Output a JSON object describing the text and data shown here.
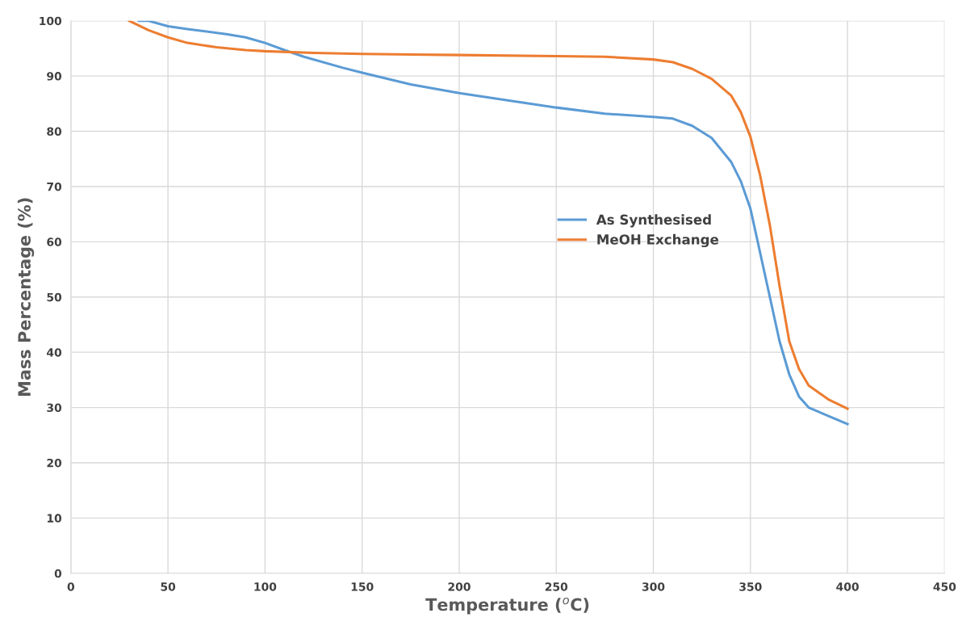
{
  "chart_data": {
    "type": "line",
    "xlabel": "Temperature ($^{o}$C)",
    "ylabel": "Mass Percentage (%)",
    "xlim": [
      0,
      450
    ],
    "xticks": [
      0,
      50,
      100,
      150,
      200,
      250,
      300,
      350,
      400,
      450
    ],
    "ylim": [
      0,
      100
    ],
    "yticks": [
      0,
      10,
      20,
      30,
      40,
      50,
      60,
      70,
      80,
      90,
      100
    ],
    "grid": true,
    "legend": "center",
    "marker": "none",
    "line_style": "solid",
    "series": [
      {
        "name": "As Synthesised",
        "color": "#5b9bd5",
        "x": [
          35,
          40,
          50,
          60,
          80,
          90,
          100,
          110,
          120,
          140,
          150,
          175,
          200,
          225,
          250,
          275,
          300,
          310,
          320,
          330,
          340,
          345,
          350,
          355,
          360,
          365,
          370,
          375,
          380,
          390,
          400
        ],
        "values": [
          100,
          100,
          99,
          98.5,
          97.6,
          97,
          96,
          94.7,
          93.5,
          91.5,
          90.6,
          88.5,
          86.9,
          85.6,
          84.3,
          83.2,
          82.6,
          82.3,
          81,
          78.8,
          74.5,
          71,
          66,
          58,
          50,
          42,
          36,
          32,
          30,
          28.5,
          27
        ]
      },
      {
        "name": "MeOH Exchange",
        "color": "#ed7d31",
        "x": [
          30,
          40,
          50,
          60,
          75,
          90,
          100,
          125,
          150,
          200,
          250,
          275,
          300,
          310,
          320,
          330,
          340,
          345,
          350,
          355,
          360,
          365,
          370,
          375,
          380,
          390,
          400
        ],
        "values": [
          100,
          98.3,
          97,
          96,
          95.2,
          94.7,
          94.5,
          94.2,
          94,
          93.8,
          93.6,
          93.5,
          93,
          92.5,
          91.3,
          89.5,
          86.5,
          83.5,
          79,
          72,
          63,
          52,
          42,
          37,
          34,
          31.5,
          29.8
        ]
      }
    ]
  }
}
